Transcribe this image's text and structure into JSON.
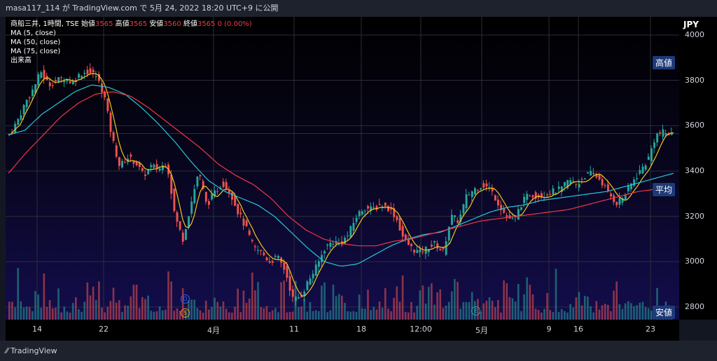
{
  "header": {
    "text": "masa117_114 が TradingView.com で 5月 24, 2022 18:20 UTC+9 に公開"
  },
  "legend": {
    "symbol_line_prefix": "商船三井, 1時間, TSE 始値",
    "open": "3565",
    "high_label": "高値",
    "high": "3565",
    "low_label": "安値",
    "low": "3560",
    "close_label": "終値",
    "close": "3565",
    "change": "0 (0.00%)",
    "ma5": "MA (5, close)",
    "ma50": "MA (50, close)",
    "ma75": "MA (75, close)",
    "volume": "出来高"
  },
  "axis": {
    "currency": "JPY",
    "y_ticks": [
      "4000",
      "3800",
      "3600",
      "3400",
      "3200",
      "3000",
      "2800"
    ],
    "x_ticks": [
      "14",
      "22",
      "4月",
      "11",
      "18",
      "12:00",
      "5月",
      "9",
      "16",
      "23"
    ]
  },
  "badges": {
    "high": "高値",
    "avg": "平均",
    "low": "安値"
  },
  "markers": {
    "d": "D",
    "s": "S",
    "e": "E"
  },
  "footer": {
    "logo": "TradingView"
  },
  "colors": {
    "up": "#26a69a",
    "down": "#ef5350",
    "ma5": "#f5c518",
    "ma50": "#26c6da",
    "ma75": "#f23645",
    "background_top": "#000000",
    "background_bottom": "#130d4d"
  },
  "chart_data": {
    "type": "candlestick",
    "ylim": [
      2750,
      4050
    ],
    "x_labels": [
      "14",
      "22",
      "4月",
      "11",
      "18",
      "12:00",
      "5月",
      "9",
      "16",
      "23"
    ],
    "close_path": [
      3560,
      3620,
      3700,
      3760,
      3840,
      3780,
      3800,
      3810,
      3790,
      3830,
      3840,
      3820,
      3740,
      3550,
      3420,
      3460,
      3440,
      3380,
      3420,
      3410,
      3440,
      3200,
      3100,
      3250,
      3400,
      3250,
      3300,
      3350,
      3310,
      3220,
      3150,
      3060,
      3040,
      3000,
      3020,
      2960,
      2830,
      2850,
      2920,
      2980,
      3060,
      3090,
      3080,
      3120,
      3200,
      3240,
      3230,
      3250,
      3240,
      3200,
      3100,
      3060,
      3040,
      3060,
      3080,
      3040,
      3200,
      3180,
      3290,
      3320,
      3340,
      3320,
      3260,
      3200,
      3180,
      3260,
      3300,
      3290,
      3300,
      3310,
      3320,
      3360,
      3340,
      3380,
      3390,
      3360,
      3300,
      3260,
      3290,
      3350,
      3400,
      3450,
      3560,
      3570,
      3560
    ],
    "ma50_path": [
      3560,
      3580,
      3650,
      3700,
      3750,
      3780,
      3770,
      3740,
      3680,
      3610,
      3530,
      3440,
      3360,
      3310,
      3280,
      3250,
      3200,
      3130,
      3060,
      3000,
      2980,
      2990,
      3030,
      3070,
      3100,
      3120,
      3130,
      3160,
      3190,
      3220,
      3240,
      3250,
      3270,
      3280,
      3290,
      3300,
      3310,
      3330,
      3350,
      3370,
      3390
    ],
    "ma75_path": [
      3390,
      3480,
      3560,
      3640,
      3700,
      3740,
      3750,
      3730,
      3680,
      3620,
      3560,
      3500,
      3430,
      3380,
      3340,
      3280,
      3200,
      3140,
      3100,
      3080,
      3070,
      3070,
      3090,
      3100,
      3120,
      3140,
      3160,
      3180,
      3190,
      3200,
      3210,
      3220,
      3230,
      3250,
      3270,
      3290,
      3310,
      3320,
      3330
    ],
    "volume_max_relative": 1
  }
}
